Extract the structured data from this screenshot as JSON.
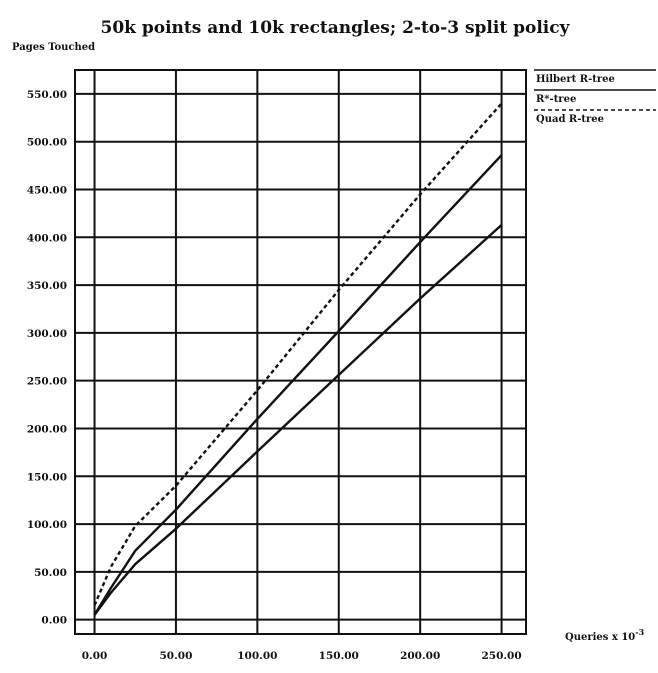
{
  "chart_data": {
    "type": "line",
    "title": "50k points and 10k rectangles; 2-to-3 split policy",
    "ylabel": "Pages Touched",
    "xlabel": "Queries x 10",
    "xlabel_exponent": "-3",
    "xlim": [
      -12,
      265
    ],
    "ylim": [
      -15,
      575
    ],
    "x_ticks": [
      "0.00",
      "50.00",
      "100.00",
      "150.00",
      "200.00",
      "250.00"
    ],
    "y_ticks": [
      "0.00",
      "50.00",
      "100.00",
      "150.00",
      "200.00",
      "250.00",
      "300.00",
      "350.00",
      "400.00",
      "450.00",
      "500.00",
      "550.00"
    ],
    "grid": true,
    "legend_placement": "right",
    "series": [
      {
        "name": "Hilbert R-tree",
        "style": "solid",
        "color": "#111111",
        "x": [
          0,
          10,
          25,
          50,
          100,
          150,
          200,
          250
        ],
        "y": [
          5,
          28,
          58,
          95,
          176,
          256,
          336,
          413
        ]
      },
      {
        "name": "R*-tree",
        "style": "solid",
        "color": "#111111",
        "x": [
          0,
          10,
          25,
          50,
          100,
          150,
          200,
          250
        ],
        "y": [
          5,
          33,
          72,
          115,
          210,
          302,
          395,
          486
        ]
      },
      {
        "name": "Quad R-tree",
        "style": "dashed",
        "color": "#111111",
        "x": [
          0,
          10,
          25,
          50,
          100,
          150,
          200,
          250
        ],
        "y": [
          15,
          55,
          98,
          140,
          240,
          345,
          445,
          540
        ]
      }
    ]
  }
}
